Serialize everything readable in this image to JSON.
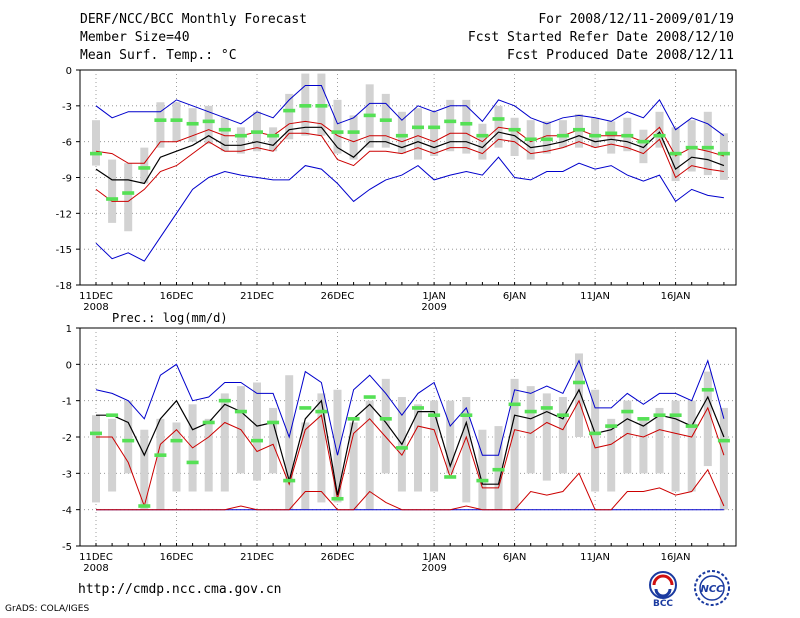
{
  "header": {
    "title": "DERF/NCC/BCC Monthly Forecast",
    "member_size": "Member Size=40",
    "variable": "Mean Surf. Temp.: °C",
    "for_period": "For 2008/12/11-2009/01/19",
    "fcst_started": "Fcst Started Refer Date 2008/12/10",
    "fcst_produced": "Fcst Produced Date 2008/12/11"
  },
  "footer": {
    "url": "http://cmdp.ncc.cma.gov.cn",
    "grads": "GrADS: COLA/IGES",
    "logo_left_text": "BCC",
    "logo_right_text": "NCC"
  },
  "colors": {
    "box": "#d2d2d2",
    "median": "#55e055",
    "mean": "#000000",
    "bound": "#0000cc",
    "spread": "#cc0000",
    "grid": "#888888"
  },
  "x_ticks": [
    {
      "day": 0,
      "label": "11DEC",
      "sub": "2008"
    },
    {
      "day": 5,
      "label": "16DEC",
      "sub": ""
    },
    {
      "day": 10,
      "label": "21DEC",
      "sub": ""
    },
    {
      "day": 15,
      "label": "26DEC",
      "sub": ""
    },
    {
      "day": 21,
      "label": "1JAN",
      "sub": "2009"
    },
    {
      "day": 26,
      "label": "6JAN",
      "sub": ""
    },
    {
      "day": 31,
      "label": "11JAN",
      "sub": ""
    },
    {
      "day": 36,
      "label": "16JAN",
      "sub": ""
    }
  ],
  "chart_data": [
    {
      "type": "box-ensemble",
      "title": "Mean Surf. Temp.: °C",
      "ylabel": "°C",
      "ylim": [
        -18,
        0
      ],
      "yticks": [
        0,
        -3,
        -6,
        -9,
        -12,
        -15,
        -18
      ],
      "days": 40,
      "series": {
        "box_top": [
          -4.2,
          -7.5,
          -7.8,
          -6.5,
          -2.7,
          -2.7,
          -3.2,
          -3.0,
          -4.0,
          -4.8,
          -3.5,
          -4.8,
          -2.0,
          -0.3,
          -0.3,
          -2.5,
          -3.8,
          -1.2,
          -2.0,
          -3.5,
          -3.2,
          -3.5,
          -2.5,
          -2.5,
          -4.5,
          -3.0,
          -4.0,
          -4.2,
          -4.3,
          -4.2,
          -3.7,
          -4.0,
          -4.3,
          -4.0,
          -5.0,
          -3.5,
          -4.8,
          -4.2,
          -3.5,
          -5.3
        ],
        "box_bottom": [
          -8.0,
          -12.8,
          -13.5,
          -9.5,
          -6.5,
          -6.0,
          -6.0,
          -6.2,
          -6.8,
          -7.0,
          -6.8,
          -6.8,
          -5.8,
          -5.5,
          -5.5,
          -7.0,
          -7.5,
          -6.5,
          -6.5,
          -7.0,
          -7.5,
          -7.2,
          -6.8,
          -7.0,
          -7.5,
          -6.5,
          -7.2,
          -7.5,
          -7.0,
          -6.5,
          -6.5,
          -6.5,
          -7.0,
          -6.8,
          -7.8,
          -6.5,
          -9.3,
          -8.5,
          -8.8,
          -9.2
        ],
        "median": [
          -7.0,
          -10.8,
          -10.3,
          -8.2,
          -4.2,
          -4.2,
          -4.5,
          -4.3,
          -5.0,
          -5.5,
          -5.2,
          -5.5,
          -3.4,
          -3.0,
          -3.0,
          -5.2,
          -5.2,
          -3.8,
          -4.2,
          -5.5,
          -4.8,
          -4.8,
          -4.3,
          -4.5,
          -5.5,
          -4.1,
          -5.0,
          -5.8,
          -5.8,
          -5.5,
          -5.0,
          -5.5,
          -5.3,
          -5.5,
          -6.0,
          -5.5,
          -7.0,
          -6.5,
          -6.5,
          -7.0
        ],
        "mean": [
          -8.3,
          -9.2,
          -9.2,
          -9.5,
          -7.3,
          -6.8,
          -6.3,
          -5.5,
          -6.3,
          -6.3,
          -6.0,
          -6.3,
          -5.0,
          -4.8,
          -4.8,
          -6.5,
          -7.3,
          -6.0,
          -6.0,
          -6.5,
          -6.0,
          -6.5,
          -6.0,
          -6.0,
          -6.5,
          -5.2,
          -5.5,
          -6.5,
          -6.3,
          -6.0,
          -5.5,
          -6.0,
          -5.8,
          -6.0,
          -6.5,
          -5.2,
          -8.3,
          -7.3,
          -7.5,
          -8.0
        ],
        "max": [
          -3.0,
          -4.0,
          -3.5,
          -3.5,
          -3.5,
          -2.5,
          -3.0,
          -3.5,
          -4.0,
          -4.5,
          -3.5,
          -4.0,
          -2.5,
          -1.3,
          -1.3,
          -4.5,
          -4.0,
          -2.8,
          -2.8,
          -4.2,
          -3.0,
          -3.5,
          -3.0,
          -3.0,
          -4.3,
          -2.5,
          -3.0,
          -4.0,
          -4.5,
          -4.0,
          -3.8,
          -4.0,
          -4.3,
          -3.5,
          -4.0,
          -2.5,
          -5.0,
          -4.0,
          -4.5,
          -5.5
        ],
        "spread_hi": [
          -6.8,
          -7.0,
          -7.8,
          -7.8,
          -6.0,
          -6.0,
          -5.5,
          -5.0,
          -5.5,
          -5.5,
          -5.2,
          -5.5,
          -4.5,
          -4.3,
          -4.5,
          -5.5,
          -6.0,
          -5.5,
          -5.5,
          -6.0,
          -5.5,
          -6.0,
          -5.3,
          -5.3,
          -6.0,
          -4.8,
          -5.0,
          -6.0,
          -5.5,
          -5.5,
          -5.0,
          -5.5,
          -5.5,
          -5.5,
          -6.0,
          -4.8,
          -7.2,
          -6.5,
          -6.8,
          -7.2
        ],
        "spread_lo": [
          -10.0,
          -11.0,
          -11.0,
          -10.0,
          -8.5,
          -8.0,
          -7.0,
          -6.0,
          -6.8,
          -6.8,
          -6.5,
          -6.8,
          -5.3,
          -5.3,
          -5.5,
          -7.5,
          -8.0,
          -6.8,
          -6.8,
          -7.0,
          -6.5,
          -7.0,
          -6.5,
          -6.5,
          -7.0,
          -5.8,
          -6.0,
          -7.0,
          -6.8,
          -6.5,
          -6.0,
          -6.5,
          -6.2,
          -6.5,
          -7.0,
          -5.8,
          -9.0,
          -8.0,
          -8.3,
          -8.5
        ],
        "min": [
          -14.5,
          -15.8,
          -15.3,
          -16.0,
          -14.0,
          -12.0,
          -10.0,
          -9.0,
          -8.5,
          -8.8,
          -9.0,
          -9.2,
          -9.2,
          -8.0,
          -8.3,
          -9.5,
          -11.0,
          -10.0,
          -9.2,
          -8.8,
          -8.0,
          -9.2,
          -8.8,
          -8.5,
          -8.8,
          -7.3,
          -9.0,
          -9.2,
          -8.5,
          -8.5,
          -7.8,
          -8.3,
          -8.0,
          -8.8,
          -9.3,
          -8.8,
          -11.0,
          -10.0,
          -10.5,
          -10.7
        ]
      }
    },
    {
      "type": "box-ensemble",
      "title": "Prec.: log(mm/d)",
      "ylabel": "log(mm/d)",
      "ylim": [
        -5,
        1
      ],
      "yticks": [
        1,
        0,
        -1,
        -2,
        -3,
        -4,
        -5
      ],
      "days": 40,
      "series": {
        "box_top": [
          -1.4,
          -1.5,
          -1.0,
          -1.8,
          -1.5,
          -1.6,
          -1.1,
          -1.5,
          -0.8,
          -0.6,
          -0.5,
          -1.2,
          -0.3,
          -1.6,
          -0.8,
          -0.7,
          -1.6,
          -1.0,
          -0.4,
          -0.9,
          -1.1,
          -1.0,
          -1.0,
          -0.9,
          -1.8,
          -1.7,
          -0.4,
          -0.6,
          -0.8,
          -0.9,
          0.3,
          -0.7,
          -1.5,
          -1.0,
          -1.5,
          -1.2,
          -1.0,
          -1.0,
          -0.2,
          -1.2
        ],
        "box_bottom": [
          -3.8,
          -3.5,
          -3.0,
          -4.0,
          -4.0,
          -3.5,
          -3.5,
          -3.5,
          -3.5,
          -3.0,
          -3.2,
          -3.0,
          -4.0,
          -4.0,
          -3.8,
          -3.8,
          -4.0,
          -4.0,
          -3.0,
          -3.5,
          -3.5,
          -3.5,
          -3.0,
          -3.8,
          -4.0,
          -4.0,
          -4.0,
          -3.0,
          -3.2,
          -3.0,
          -2.0,
          -3.5,
          -3.5,
          -3.0,
          -3.0,
          -3.0,
          -3.5,
          -3.5,
          -2.8,
          -4.0
        ],
        "median": [
          -1.9,
          -1.4,
          -2.1,
          -3.9,
          -2.5,
          -2.1,
          -2.7,
          -1.6,
          -1.0,
          -1.3,
          -2.1,
          -1.6,
          -3.2,
          -1.2,
          -1.3,
          -3.7,
          -1.5,
          -0.9,
          -1.5,
          -2.3,
          -1.2,
          -1.4,
          -3.1,
          -1.4,
          -3.2,
          -2.9,
          -1.1,
          -1.3,
          -1.2,
          -1.4,
          -0.5,
          -1.9,
          -1.7,
          -1.3,
          -1.5,
          -1.4,
          -1.4,
          -1.7,
          -0.7,
          -2.1
        ],
        "mean": [
          -1.4,
          -1.4,
          -1.6,
          -2.5,
          -1.5,
          -1.0,
          -1.8,
          -1.6,
          -1.1,
          -1.3,
          -1.7,
          -1.6,
          -3.2,
          -1.5,
          -1.0,
          -3.6,
          -1.5,
          -1.1,
          -1.6,
          -2.2,
          -1.3,
          -1.3,
          -2.8,
          -1.6,
          -3.3,
          -3.3,
          -1.4,
          -1.5,
          -1.3,
          -1.5,
          -0.7,
          -1.9,
          -1.8,
          -1.5,
          -1.7,
          -1.4,
          -1.5,
          -1.7,
          -0.9,
          -2.0
        ],
        "max": [
          -0.7,
          -0.8,
          -1.0,
          -1.5,
          -0.3,
          0.0,
          -1.0,
          -0.9,
          -0.5,
          -0.5,
          -0.8,
          -0.8,
          -2.0,
          -0.2,
          -0.5,
          -2.5,
          -0.7,
          -0.3,
          -0.8,
          -1.4,
          -0.8,
          -0.5,
          -1.7,
          -1.2,
          -2.5,
          -2.5,
          -0.7,
          -0.8,
          -0.6,
          -0.8,
          0.1,
          -1.2,
          -1.2,
          -0.8,
          -1.1,
          -0.8,
          -0.8,
          -1.0,
          0.1,
          -1.5
        ],
        "spread_hi": [
          -2.0,
          -2.0,
          -2.7,
          -3.9,
          -2.2,
          -1.8,
          -2.3,
          -2.0,
          -1.6,
          -1.8,
          -2.4,
          -2.2,
          -3.3,
          -1.8,
          -1.4,
          -3.7,
          -1.9,
          -1.5,
          -2.0,
          -2.5,
          -1.7,
          -1.8,
          -3.1,
          -2.0,
          -3.4,
          -3.4,
          -1.8,
          -1.9,
          -1.6,
          -1.8,
          -1.0,
          -2.3,
          -2.2,
          -1.9,
          -2.0,
          -1.8,
          -1.9,
          -2.0,
          -1.2,
          -2.5
        ],
        "spread_lo": [
          -4.0,
          -4.0,
          -4.0,
          -4.0,
          -4.0,
          -4.0,
          -4.0,
          -4.0,
          -4.0,
          -3.9,
          -4.0,
          -4.0,
          -4.0,
          -3.5,
          -3.5,
          -4.0,
          -4.0,
          -3.5,
          -3.8,
          -4.0,
          -4.0,
          -4.0,
          -4.0,
          -3.9,
          -4.0,
          -4.0,
          -4.0,
          -3.5,
          -3.6,
          -3.5,
          -3.0,
          -4.0,
          -4.0,
          -3.5,
          -3.5,
          -3.4,
          -3.6,
          -3.5,
          -2.9,
          -3.9
        ],
        "min": [
          -4.0,
          -4.0,
          -4.0,
          -4.0,
          -4.0,
          -4.0,
          -4.0,
          -4.0,
          -4.0,
          -4.0,
          -4.0,
          -4.0,
          -4.0,
          -4.0,
          -4.0,
          -4.0,
          -4.0,
          -4.0,
          -4.0,
          -4.0,
          -4.0,
          -4.0,
          -4.0,
          -4.0,
          -4.0,
          -4.0,
          -4.0,
          -4.0,
          -4.0,
          -4.0,
          -4.0,
          -4.0,
          -4.0,
          -4.0,
          -4.0,
          -4.0,
          -4.0,
          -4.0,
          -4.0,
          -4.0
        ]
      }
    }
  ]
}
